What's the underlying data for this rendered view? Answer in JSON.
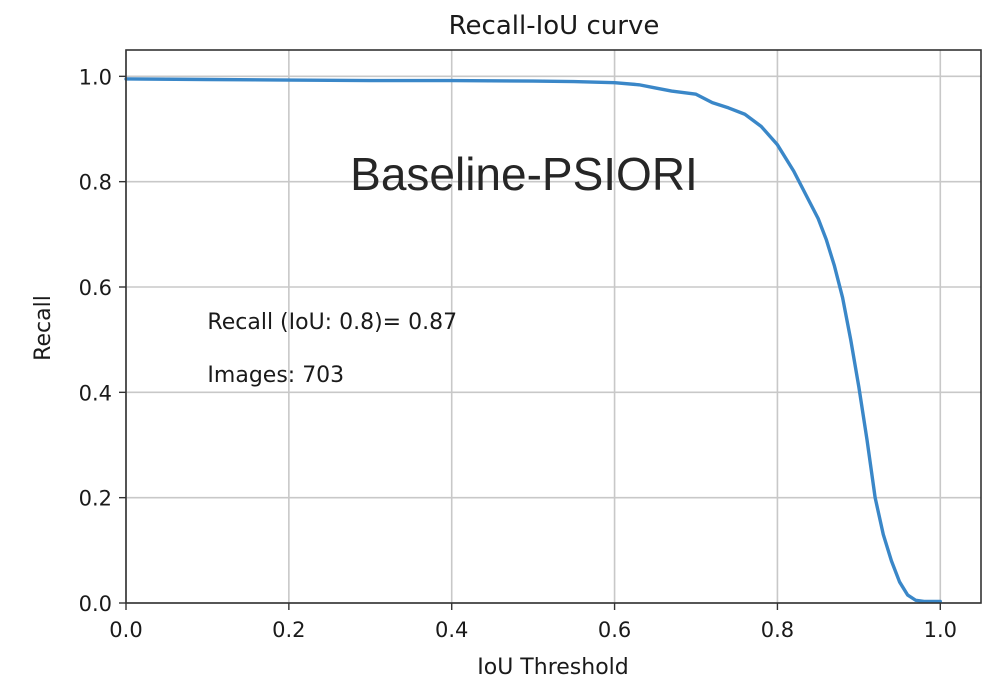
{
  "chart_data": {
    "type": "line",
    "title": "Recall-IoU curve",
    "xlabel": "IoU Threshold",
    "ylabel": "Recall",
    "xlim": [
      0.0,
      1.05
    ],
    "ylim": [
      0.0,
      1.05
    ],
    "xticks": [
      "0.0",
      "0.2",
      "0.4",
      "0.6",
      "0.8",
      "1.0"
    ],
    "yticks": [
      "0.0",
      "0.2",
      "0.4",
      "0.6",
      "0.8",
      "1.0"
    ],
    "grid": true,
    "series": [
      {
        "color": "#3a87c8",
        "x": [
          0.0,
          0.1,
          0.2,
          0.3,
          0.4,
          0.5,
          0.55,
          0.6,
          0.63,
          0.65,
          0.67,
          0.7,
          0.72,
          0.74,
          0.76,
          0.78,
          0.8,
          0.82,
          0.84,
          0.85,
          0.86,
          0.87,
          0.88,
          0.89,
          0.9,
          0.91,
          0.92,
          0.93,
          0.94,
          0.95,
          0.96,
          0.97,
          0.98,
          0.99,
          1.0
        ],
        "y": [
          0.995,
          0.994,
          0.993,
          0.992,
          0.992,
          0.991,
          0.99,
          0.988,
          0.984,
          0.978,
          0.972,
          0.966,
          0.95,
          0.94,
          0.928,
          0.905,
          0.87,
          0.82,
          0.76,
          0.73,
          0.69,
          0.64,
          0.58,
          0.5,
          0.41,
          0.31,
          0.2,
          0.13,
          0.08,
          0.04,
          0.015,
          0.005,
          0.003,
          0.003,
          0.003
        ]
      }
    ],
    "annotations": [
      {
        "text": "Recall (IoU: 0.8)= 0.87",
        "x": 0.1,
        "y": 0.52
      },
      {
        "text": "Images: 703",
        "x": 0.1,
        "y": 0.42
      }
    ],
    "overlay_text": "Baseline-PSIORI"
  }
}
